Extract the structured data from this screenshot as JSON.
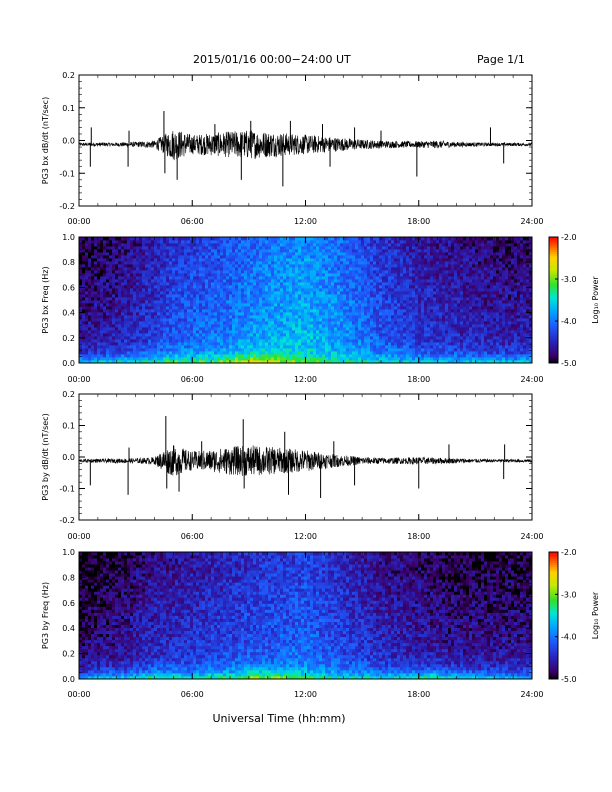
{
  "header": {
    "title": "2015/01/16  00:00−24:00 UT",
    "page": "Page 1/1"
  },
  "footer": {
    "xlabel": "Universal Time (hh:mm)"
  },
  "colorbar": {
    "label": "Log₁₀ Power",
    "ticks": [
      "-2.0",
      "-3.0",
      "-4.0",
      "-5.0"
    ],
    "range": [
      -5.0,
      -2.0
    ]
  },
  "chart_data": [
    {
      "type": "line",
      "ylabel": "PG3 bx dB/dt (nT/sec)",
      "xlim": [
        0,
        24
      ],
      "ylim": [
        -0.2,
        0.2
      ],
      "x_ticks": [
        "00:00",
        "06:00",
        "12:00",
        "18:00",
        "24:00"
      ],
      "y_ticks": [
        "0.2",
        "0.1",
        "0.0",
        "-0.1",
        "-0.2"
      ],
      "activity_envelope": {
        "hours": [
          0,
          1,
          2,
          3,
          4,
          4.5,
          5,
          6,
          7,
          8,
          9,
          10,
          11,
          12,
          13,
          14,
          15,
          16,
          17,
          18,
          19,
          20,
          21,
          22,
          23,
          24
        ],
        "amplitude": [
          0.005,
          0.006,
          0.006,
          0.008,
          0.012,
          0.03,
          0.05,
          0.03,
          0.035,
          0.04,
          0.045,
          0.04,
          0.035,
          0.03,
          0.025,
          0.02,
          0.015,
          0.012,
          0.01,
          0.01,
          0.012,
          0.008,
          0.006,
          0.005,
          0.005,
          0.005
        ]
      },
      "spikes": [
        {
          "hour": 0.6,
          "value": -0.08
        },
        {
          "hour": 0.65,
          "value": 0.04
        },
        {
          "hour": 2.6,
          "value": -0.08
        },
        {
          "hour": 2.65,
          "value": 0.03
        },
        {
          "hour": 4.5,
          "value": 0.09
        },
        {
          "hour": 4.55,
          "value": -0.1
        },
        {
          "hour": 5.2,
          "value": -0.12
        },
        {
          "hour": 7.2,
          "value": 0.05
        },
        {
          "hour": 8.6,
          "value": -0.12
        },
        {
          "hour": 9.1,
          "value": 0.06
        },
        {
          "hour": 10.8,
          "value": -0.14
        },
        {
          "hour": 11.2,
          "value": 0.06
        },
        {
          "hour": 12.9,
          "value": 0.05
        },
        {
          "hour": 13.3,
          "value": -0.08
        },
        {
          "hour": 14.6,
          "value": 0.04
        },
        {
          "hour": 16.0,
          "value": 0.03
        },
        {
          "hour": 17.9,
          "value": -0.11
        },
        {
          "hour": 21.8,
          "value": 0.04
        },
        {
          "hour": 22.5,
          "value": -0.07
        }
      ]
    },
    {
      "type": "heatmap",
      "ylabel": "PG3 bx Freq (Hz)",
      "xlim": [
        0,
        24
      ],
      "ylim": [
        0.0,
        1.0
      ],
      "x_ticks": [
        "00:00",
        "06:00",
        "12:00",
        "18:00",
        "24:00"
      ],
      "y_ticks": [
        "1.0",
        "0.8",
        "0.6",
        "0.4",
        "0.2",
        "0.0"
      ],
      "colorscale": "rainbow",
      "zlim": [
        -5.0,
        -2.0
      ],
      "baseline_by_hour": {
        "hours": [
          0,
          2,
          3,
          5,
          8,
          10,
          12,
          14,
          16,
          18,
          20,
          22,
          24
        ],
        "log_power": [
          -4.6,
          -4.5,
          -4.4,
          -4.1,
          -3.9,
          -3.7,
          -3.6,
          -3.8,
          -4.1,
          -4.3,
          -4.4,
          -4.5,
          -4.5
        ]
      },
      "low_freq_peak_by_hour": {
        "hours": [
          0,
          2,
          4,
          5,
          7,
          8,
          9,
          10,
          11,
          12,
          13,
          15,
          18,
          21,
          24
        ],
        "log_power": [
          -3.5,
          -3.3,
          -3.2,
          -2.9,
          -3.0,
          -2.6,
          -2.3,
          -2.5,
          -2.8,
          -3.0,
          -3.1,
          -3.3,
          -3.4,
          -3.4,
          -3.4
        ]
      }
    },
    {
      "type": "line",
      "ylabel": "PG3 by dB/dt (nT/sec)",
      "xlim": [
        0,
        24
      ],
      "ylim": [
        -0.2,
        0.2
      ],
      "x_ticks": [
        "00:00",
        "06:00",
        "12:00",
        "18:00",
        "24:00"
      ],
      "y_ticks": [
        "0.2",
        "0.1",
        "0.0",
        "-0.1",
        "-0.2"
      ],
      "activity_envelope": {
        "hours": [
          0,
          1,
          2,
          3,
          4,
          4.5,
          5,
          6,
          7,
          8,
          9,
          10,
          11,
          12,
          13,
          14,
          15,
          16,
          17,
          18,
          19,
          20,
          21,
          22,
          23,
          24
        ],
        "amplitude": [
          0.005,
          0.006,
          0.007,
          0.008,
          0.012,
          0.035,
          0.05,
          0.03,
          0.035,
          0.045,
          0.05,
          0.045,
          0.04,
          0.035,
          0.025,
          0.018,
          0.012,
          0.01,
          0.01,
          0.012,
          0.01,
          0.008,
          0.006,
          0.005,
          0.005,
          0.005
        ]
      },
      "spikes": [
        {
          "hour": 0.6,
          "value": -0.09
        },
        {
          "hour": 2.6,
          "value": -0.12
        },
        {
          "hour": 2.65,
          "value": 0.03
        },
        {
          "hour": 4.6,
          "value": 0.13
        },
        {
          "hour": 4.65,
          "value": -0.1
        },
        {
          "hour": 5.3,
          "value": -0.11
        },
        {
          "hour": 6.5,
          "value": 0.05
        },
        {
          "hour": 8.7,
          "value": 0.12
        },
        {
          "hour": 8.75,
          "value": -0.1
        },
        {
          "hour": 10.9,
          "value": 0.08
        },
        {
          "hour": 11.1,
          "value": -0.12
        },
        {
          "hour": 12.8,
          "value": -0.13
        },
        {
          "hour": 13.5,
          "value": 0.05
        },
        {
          "hour": 14.6,
          "value": -0.09
        },
        {
          "hour": 18.0,
          "value": -0.1
        },
        {
          "hour": 19.6,
          "value": 0.04
        },
        {
          "hour": 22.5,
          "value": -0.07
        },
        {
          "hour": 22.55,
          "value": 0.04
        }
      ]
    },
    {
      "type": "heatmap",
      "ylabel": "PG3 by Freq (Hz)",
      "xlim": [
        0,
        24
      ],
      "ylim": [
        0.0,
        1.0
      ],
      "x_ticks": [
        "00:00",
        "06:00",
        "12:00",
        "18:00",
        "24:00"
      ],
      "y_ticks": [
        "1.0",
        "0.8",
        "0.6",
        "0.4",
        "0.2",
        "0.0"
      ],
      "colorscale": "rainbow",
      "zlim": [
        -5.0,
        -2.0
      ],
      "baseline_by_hour": {
        "hours": [
          0,
          2,
          4,
          6,
          8,
          10,
          12,
          14,
          16,
          18,
          20,
          22,
          24
        ],
        "log_power": [
          -4.7,
          -4.6,
          -4.4,
          -4.3,
          -4.2,
          -4.1,
          -4.0,
          -4.2,
          -4.4,
          -4.5,
          -4.6,
          -4.6,
          -4.6
        ]
      },
      "low_freq_peak_by_hour": {
        "hours": [
          0,
          1.3,
          2,
          4.5,
          6,
          8,
          9,
          10,
          11.5,
          12,
          14,
          16,
          18,
          19,
          21,
          24
        ],
        "log_power": [
          -3.8,
          -3.2,
          -3.5,
          -3.0,
          -3.3,
          -3.0,
          -2.6,
          -2.7,
          -2.9,
          -3.1,
          -3.2,
          -3.3,
          -3.1,
          -3.0,
          -3.4,
          -3.6
        ]
      }
    }
  ]
}
